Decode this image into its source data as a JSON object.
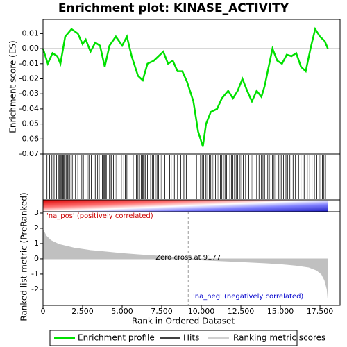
{
  "chart_data": [
    {
      "type": "line",
      "title": "Enrichment plot: KINASE_ACTIVITY",
      "ylabel": "Enrichment score (ES)",
      "x": [
        0,
        300,
        600,
        900,
        1100,
        1400,
        1800,
        2200,
        2500,
        2700,
        3000,
        3300,
        3600,
        3900,
        4200,
        4600,
        5000,
        5300,
        5600,
        6000,
        6300,
        6600,
        7000,
        7300,
        7600,
        7900,
        8200,
        8500,
        8800,
        9100,
        9500,
        9800,
        10100,
        10300,
        10600,
        11000,
        11300,
        11700,
        12000,
        12300,
        12600,
        12900,
        13200,
        13500,
        13800,
        14000,
        14300,
        14500,
        14800,
        15100,
        15400,
        15700,
        16000,
        16300,
        16600,
        16900,
        17200,
        17500,
        17800,
        18000
      ],
      "series": [
        {
          "name": "Enrichment profile",
          "color": "#00e000",
          "values": [
            0.0,
            -0.01,
            -0.003,
            -0.005,
            -0.01,
            0.008,
            0.013,
            0.01,
            0.003,
            0.006,
            -0.002,
            0.004,
            0.002,
            -0.012,
            0.002,
            0.008,
            0.002,
            0.008,
            -0.005,
            -0.018,
            -0.021,
            -0.01,
            -0.008,
            -0.005,
            -0.002,
            -0.01,
            -0.008,
            -0.015,
            -0.015,
            -0.022,
            -0.035,
            -0.055,
            -0.065,
            -0.05,
            -0.042,
            -0.04,
            -0.033,
            -0.028,
            -0.033,
            -0.028,
            -0.02,
            -0.028,
            -0.035,
            -0.028,
            -0.032,
            -0.025,
            -0.01,
            0.0,
            -0.008,
            -0.01,
            -0.004,
            -0.005,
            -0.003,
            -0.012,
            -0.015,
            0.0,
            0.013,
            0.008,
            0.005,
            0.0
          ]
        }
      ],
      "xlim": [
        0,
        18770
      ],
      "ylim": [
        -0.07,
        0.0194
      ],
      "yticks": [
        0.01,
        {
          "value": 0,
          "label": "0.00"
        },
        -0.01,
        -0.02,
        -0.03,
        -0.04,
        -0.05,
        -0.06,
        -0.07
      ]
    },
    {
      "type": "hits",
      "name": "Hits",
      "color": "#000000",
      "xlim": [
        0,
        18770
      ],
      "x": [
        250,
        420,
        560,
        700,
        850,
        1000,
        1050,
        1100,
        1150,
        1200,
        1250,
        1300,
        1350,
        1400,
        1480,
        1550,
        1620,
        1700,
        1780,
        1850,
        1950,
        2050,
        2200,
        2450,
        2550,
        2800,
        2900,
        2950,
        3050,
        3300,
        3450,
        3550,
        3750,
        3800,
        3850,
        3900,
        3950,
        4000,
        4100,
        4200,
        4300,
        4350,
        4450,
        4550,
        4650,
        4800,
        4950,
        5100,
        5200,
        5300,
        5500,
        5700,
        5900,
        6000,
        6100,
        6200,
        6300,
        6350,
        6450,
        6500,
        6600,
        6800,
        6900,
        7000,
        7100,
        7200,
        7300,
        7400,
        7500,
        7700,
        8000,
        8100,
        8300,
        8500,
        8700,
        8900,
        9050,
        9700,
        9950,
        10050,
        10150,
        10250,
        10300,
        10400,
        10500,
        10600,
        10700,
        10800,
        10900,
        11000,
        11100,
        11200,
        11300,
        11400,
        11500,
        11600,
        11800,
        11900,
        12000,
        12100,
        12200,
        12300,
        12450,
        12550,
        12650,
        12800,
        13000,
        13150,
        13250,
        13400,
        13500,
        13650,
        13800,
        13900,
        14000,
        14100,
        14200,
        14300,
        14400,
        14500,
        14600,
        14700,
        14900,
        15050,
        15200,
        15350,
        15450,
        15600,
        15800,
        15950,
        16150,
        16300,
        16500,
        16700,
        16850,
        17000,
        17150,
        17300,
        17450,
        17550,
        17650,
        17750,
        17850
      ]
    },
    {
      "type": "area",
      "xlabel": "Rank in Ordered Dataset",
      "ylabel": "Ranked list metric (PreRanked)",
      "x": [
        0,
        200,
        500,
        1000,
        2000,
        3000,
        4000,
        5000,
        6000,
        7000,
        8000,
        9177,
        10000,
        11000,
        12000,
        13000,
        14000,
        15000,
        16000,
        16800,
        17300,
        17600,
        17800,
        17950,
        18000
      ],
      "series": [
        {
          "name": "Ranking metric scores",
          "color": "#c0c0c0",
          "values": [
            1.9,
            1.5,
            1.2,
            0.95,
            0.7,
            0.55,
            0.45,
            0.35,
            0.27,
            0.2,
            0.12,
            0,
            -0.07,
            -0.12,
            -0.17,
            -0.22,
            -0.27,
            -0.33,
            -0.43,
            -0.55,
            -0.75,
            -1.0,
            -1.4,
            -2.0,
            -2.6
          ]
        }
      ],
      "xlim": [
        0,
        18770
      ],
      "ylim": [
        -3.05,
        3.09
      ],
      "yticks": [
        3,
        2,
        1,
        0,
        -1,
        -2
      ],
      "xticks": [
        0,
        {
          "value": 2500,
          "label": "2,500"
        },
        {
          "value": 5000,
          "label": "5,000"
        },
        {
          "value": 7500,
          "label": "7,500"
        },
        {
          "value": 10000,
          "label": "10,000"
        },
        {
          "value": 12500,
          "label": "12,500"
        },
        {
          "value": 15000,
          "label": "15,000"
        },
        {
          "value": 17500,
          "label": "17,500"
        }
      ],
      "zero_cross": {
        "value": 9177,
        "label": "Zero cross at 9177"
      },
      "annotations": [
        {
          "text": "'na_pos' (positively correlated)",
          "color": "#cc0000"
        },
        {
          "text": "'na_neg' (negatively correlated)",
          "color": "#0000cc"
        }
      ]
    }
  ]
}
